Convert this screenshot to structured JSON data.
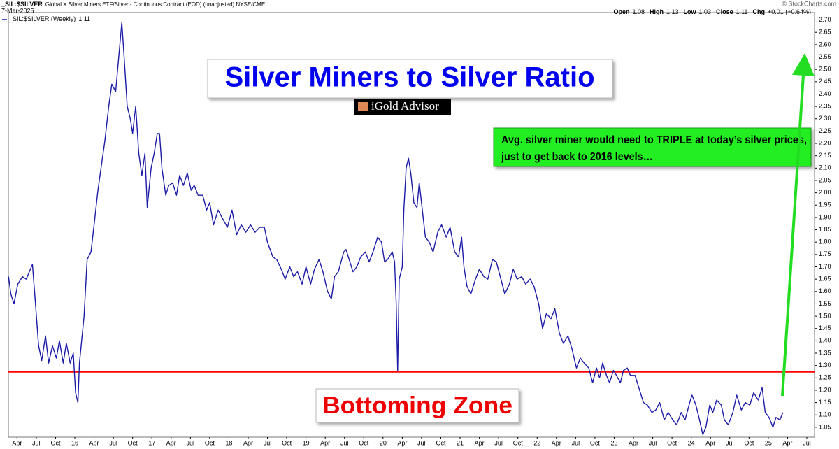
{
  "chart_data": {
    "type": "line",
    "header": {
      "symbol": "_SIL:$SILVER",
      "description": "Global X Silver Miners ETF/Silver - Continuous Contract (EOD) (unadjusted) NYSE/CME",
      "date": "7-Mar-2025",
      "source": "© StockCharts.com"
    },
    "ohlc": [
      {
        "label": "Open",
        "value": "1.08"
      },
      {
        "label": "High",
        "value": "1.13"
      },
      {
        "label": "Low",
        "value": "1.03"
      },
      {
        "label": "Close",
        "value": "1.11"
      },
      {
        "label": "Chg",
        "value": "+0.01 (+0.64%)"
      }
    ],
    "title": "Silver Miners to Silver Ratio",
    "logo": "iGold Advisor",
    "annotations": {
      "callout": [
        "Avg. silver miner would need to TRIPLE at today’s silver prices,",
        "just to get back to 2016 levels…"
      ],
      "zone": "Bottoming Zone"
    },
    "reference_line": {
      "value": 1.275,
      "color": "#ff0000"
    },
    "x": [
      2015.14,
      2015.17,
      2015.21,
      2015.26,
      2015.32,
      2015.37,
      2015.45,
      2015.48,
      2015.53,
      2015.57,
      2015.62,
      2015.66,
      2015.71,
      2015.76,
      2015.8,
      2015.85,
      2015.89,
      2015.94,
      2015.98,
      2016.01,
      2016.04,
      2016.06,
      2016.12,
      2016.16,
      2016.21,
      2016.25,
      2016.3,
      2016.34,
      2016.39,
      2016.44,
      2016.48,
      2016.53,
      2016.57,
      2016.61,
      2016.64,
      2016.68,
      2016.72,
      2016.75,
      2016.79,
      2016.83,
      2016.87,
      2016.91,
      2016.94,
      2016.99,
      2017.03,
      2017.07,
      2017.1,
      2017.13,
      2017.18,
      2017.22,
      2017.27,
      2017.32,
      2017.36,
      2017.41,
      2017.46,
      2017.51,
      2017.55,
      2017.6,
      2017.66,
      2017.71,
      2017.75,
      2017.8,
      2017.86,
      2017.91,
      2017.98,
      2018.04,
      2018.1,
      2018.16,
      2018.22,
      2018.28,
      2018.34,
      2018.4,
      2018.46,
      2018.5,
      2018.57,
      2018.62,
      2018.68,
      2018.73,
      2018.79,
      2018.84,
      2018.89,
      2018.95,
      2019.0,
      2019.06,
      2019.11,
      2019.17,
      2019.22,
      2019.28,
      2019.33,
      2019.37,
      2019.42,
      2019.49,
      2019.52,
      2019.57,
      2019.61,
      2019.66,
      2019.71,
      2019.77,
      2019.82,
      2019.87,
      2019.93,
      2019.98,
      2020.02,
      2020.06,
      2020.12,
      2020.15,
      2020.17,
      2020.19,
      2020.21,
      2020.25,
      2020.27,
      2020.3,
      2020.33,
      2020.36,
      2020.4,
      2020.44,
      2020.47,
      2020.51,
      2020.55,
      2020.6,
      2020.65,
      2020.71,
      2020.76,
      2020.82,
      2020.87,
      2020.93,
      2020.98,
      2021.02,
      2021.05,
      2021.09,
      2021.14,
      2021.2,
      2021.25,
      2021.31,
      2021.36,
      2021.42,
      2021.47,
      2021.53,
      2021.58,
      2021.64,
      2021.69,
      2021.74,
      2021.8,
      2021.85,
      2021.91,
      2021.96,
      2022.02,
      2022.07,
      2022.12,
      2022.18,
      2022.23,
      2022.29,
      2022.34,
      2022.4,
      2022.45,
      2022.51,
      2022.56,
      2022.61,
      2022.67,
      2022.72,
      2022.77,
      2022.81,
      2022.85,
      2022.9,
      2022.94,
      2022.99,
      2023.03,
      2023.08,
      2023.12,
      2023.17,
      2023.21,
      2023.27,
      2023.32,
      2023.38,
      2023.43,
      2023.49,
      2023.54,
      2023.59,
      2023.65,
      2023.7,
      2023.76,
      2023.81,
      2023.87,
      2023.92,
      2023.98,
      2024.01,
      2024.06,
      2024.1,
      2024.15,
      2024.19,
      2024.24,
      2024.28,
      2024.33,
      2024.39,
      2024.43,
      2024.48,
      2024.54,
      2024.59,
      2024.65,
      2024.7,
      2024.76,
      2024.81,
      2024.87,
      2024.92,
      2024.96,
      2025.01,
      2025.06,
      2025.1,
      2025.15,
      2025.19
    ],
    "series": [
      {
        "name": "_SIL:$SILVER (Weekly)",
        "legend_value": "1.11",
        "color": "#1c1ca8",
        "values": [
          1.66,
          1.59,
          1.55,
          1.63,
          1.66,
          1.65,
          1.71,
          1.59,
          1.38,
          1.32,
          1.42,
          1.31,
          1.38,
          1.33,
          1.4,
          1.31,
          1.39,
          1.31,
          1.35,
          1.19,
          1.15,
          1.31,
          1.5,
          1.73,
          1.76,
          1.87,
          2.01,
          2.1,
          2.21,
          2.35,
          2.44,
          2.41,
          2.55,
          2.69,
          2.55,
          2.35,
          2.3,
          2.24,
          2.35,
          2.16,
          2.07,
          2.16,
          1.94,
          2.1,
          2.16,
          2.24,
          2.24,
          2.1,
          1.99,
          2.03,
          2.04,
          1.99,
          2.07,
          2.03,
          2.08,
          2.01,
          2.03,
          1.99,
          1.99,
          1.93,
          1.96,
          1.87,
          1.93,
          1.9,
          1.86,
          1.93,
          1.83,
          1.87,
          1.84,
          1.87,
          1.84,
          1.86,
          1.86,
          1.8,
          1.74,
          1.73,
          1.69,
          1.65,
          1.7,
          1.66,
          1.68,
          1.63,
          1.7,
          1.63,
          1.69,
          1.73,
          1.68,
          1.6,
          1.57,
          1.66,
          1.68,
          1.76,
          1.77,
          1.72,
          1.68,
          1.7,
          1.74,
          1.76,
          1.72,
          1.76,
          1.82,
          1.8,
          1.72,
          1.73,
          1.76,
          1.72,
          1.56,
          1.28,
          1.65,
          1.7,
          1.93,
          2.1,
          2.14,
          2.08,
          1.96,
          1.94,
          2.04,
          1.93,
          1.82,
          1.8,
          1.76,
          1.84,
          1.87,
          1.82,
          1.86,
          1.76,
          1.74,
          1.82,
          1.7,
          1.62,
          1.59,
          1.65,
          1.69,
          1.66,
          1.65,
          1.73,
          1.72,
          1.65,
          1.59,
          1.63,
          1.69,
          1.65,
          1.66,
          1.63,
          1.65,
          1.62,
          1.55,
          1.45,
          1.51,
          1.49,
          1.53,
          1.43,
          1.39,
          1.42,
          1.37,
          1.29,
          1.33,
          1.31,
          1.29,
          1.23,
          1.29,
          1.25,
          1.31,
          1.26,
          1.23,
          1.28,
          1.26,
          1.23,
          1.28,
          1.29,
          1.26,
          1.26,
          1.21,
          1.15,
          1.14,
          1.11,
          1.12,
          1.15,
          1.08,
          1.11,
          1.08,
          1.06,
          1.11,
          1.08,
          1.15,
          1.18,
          1.14,
          1.09,
          1.02,
          1.05,
          1.14,
          1.11,
          1.16,
          1.14,
          1.08,
          1.06,
          1.11,
          1.18,
          1.12,
          1.15,
          1.14,
          1.19,
          1.16,
          1.21,
          1.11,
          1.09,
          1.05,
          1.09,
          1.08,
          1.11
        ]
      }
    ],
    "xlim": [
      2015.138,
      2025.6
    ],
    "xticks": [
      {
        "value": 2015.25,
        "label": "Apr"
      },
      {
        "value": 2015.5,
        "label": "Jul"
      },
      {
        "value": 2015.75,
        "label": "Oct"
      },
      {
        "value": 2016,
        "label": "16"
      },
      {
        "value": 2016.25,
        "label": "Apr"
      },
      {
        "value": 2016.5,
        "label": "Jul"
      },
      {
        "value": 2016.75,
        "label": "Oct"
      },
      {
        "value": 2017,
        "label": "17"
      },
      {
        "value": 2017.25,
        "label": "Apr"
      },
      {
        "value": 2017.5,
        "label": "Jul"
      },
      {
        "value": 2017.75,
        "label": "Oct"
      },
      {
        "value": 2018,
        "label": "18"
      },
      {
        "value": 2018.25,
        "label": "Apr"
      },
      {
        "value": 2018.5,
        "label": "Jul"
      },
      {
        "value": 2018.75,
        "label": "Oct"
      },
      {
        "value": 2019,
        "label": "19"
      },
      {
        "value": 2019.25,
        "label": "Apr"
      },
      {
        "value": 2019.5,
        "label": "Jul"
      },
      {
        "value": 2019.75,
        "label": "Oct"
      },
      {
        "value": 2020,
        "label": "20"
      },
      {
        "value": 2020.25,
        "label": "Apr"
      },
      {
        "value": 2020.5,
        "label": "Jul"
      },
      {
        "value": 2020.75,
        "label": "Oct"
      },
      {
        "value": 2021,
        "label": "21"
      },
      {
        "value": 2021.25,
        "label": "Apr"
      },
      {
        "value": 2021.5,
        "label": "Jul"
      },
      {
        "value": 2021.75,
        "label": "Oct"
      },
      {
        "value": 2022,
        "label": "22"
      },
      {
        "value": 2022.25,
        "label": "Apr"
      },
      {
        "value": 2022.5,
        "label": "Jul"
      },
      {
        "value": 2022.75,
        "label": "Oct"
      },
      {
        "value": 2023,
        "label": "23"
      },
      {
        "value": 2023.25,
        "label": "Apr"
      },
      {
        "value": 2023.5,
        "label": "Jul"
      },
      {
        "value": 2023.75,
        "label": "Oct"
      },
      {
        "value": 2024,
        "label": "24"
      },
      {
        "value": 2024.25,
        "label": "Apr"
      },
      {
        "value": 2024.5,
        "label": "Jul"
      },
      {
        "value": 2024.75,
        "label": "Oct"
      },
      {
        "value": 2025,
        "label": "25"
      },
      {
        "value": 2025.25,
        "label": "Apr"
      },
      {
        "value": 2025.5,
        "label": "Jul"
      }
    ],
    "ylim": [
      1.01,
      2.73
    ],
    "yticks": [
      {
        "value": 1.05,
        "label": "1.05"
      },
      {
        "value": 1.1,
        "label": "1.10"
      },
      {
        "value": 1.15,
        "label": "1.15"
      },
      {
        "value": 1.2,
        "label": "1.20"
      },
      {
        "value": 1.25,
        "label": "1.25"
      },
      {
        "value": 1.3,
        "label": "1.30"
      },
      {
        "value": 1.35,
        "label": "1.35"
      },
      {
        "value": 1.4,
        "label": "1.40"
      },
      {
        "value": 1.45,
        "label": "1.45"
      },
      {
        "value": 1.5,
        "label": "1.50"
      },
      {
        "value": 1.55,
        "label": "1.55"
      },
      {
        "value": 1.6,
        "label": "1.60"
      },
      {
        "value": 1.65,
        "label": "1.65"
      },
      {
        "value": 1.7,
        "label": "1.70"
      },
      {
        "value": 1.75,
        "label": "1.75"
      },
      {
        "value": 1.8,
        "label": "1.80"
      },
      {
        "value": 1.85,
        "label": "1.85"
      },
      {
        "value": 1.9,
        "label": "1.90"
      },
      {
        "value": 1.95,
        "label": "1.95"
      },
      {
        "value": 2.0,
        "label": "2.00"
      },
      {
        "value": 2.05,
        "label": "2.05"
      },
      {
        "value": 2.1,
        "label": "2.10"
      },
      {
        "value": 2.15,
        "label": "2.15"
      },
      {
        "value": 2.2,
        "label": "2.20"
      },
      {
        "value": 2.25,
        "label": "2.25"
      },
      {
        "value": 2.3,
        "label": "2.30"
      },
      {
        "value": 2.35,
        "label": "2.35"
      },
      {
        "value": 2.4,
        "label": "2.40"
      },
      {
        "value": 2.45,
        "label": "2.45"
      },
      {
        "value": 2.5,
        "label": "2.50"
      },
      {
        "value": 2.55,
        "label": "2.55"
      },
      {
        "value": 2.6,
        "label": "2.60"
      },
      {
        "value": 2.65,
        "label": "2.65"
      },
      {
        "value": 2.7,
        "label": "2.70"
      }
    ],
    "grid": false
  }
}
